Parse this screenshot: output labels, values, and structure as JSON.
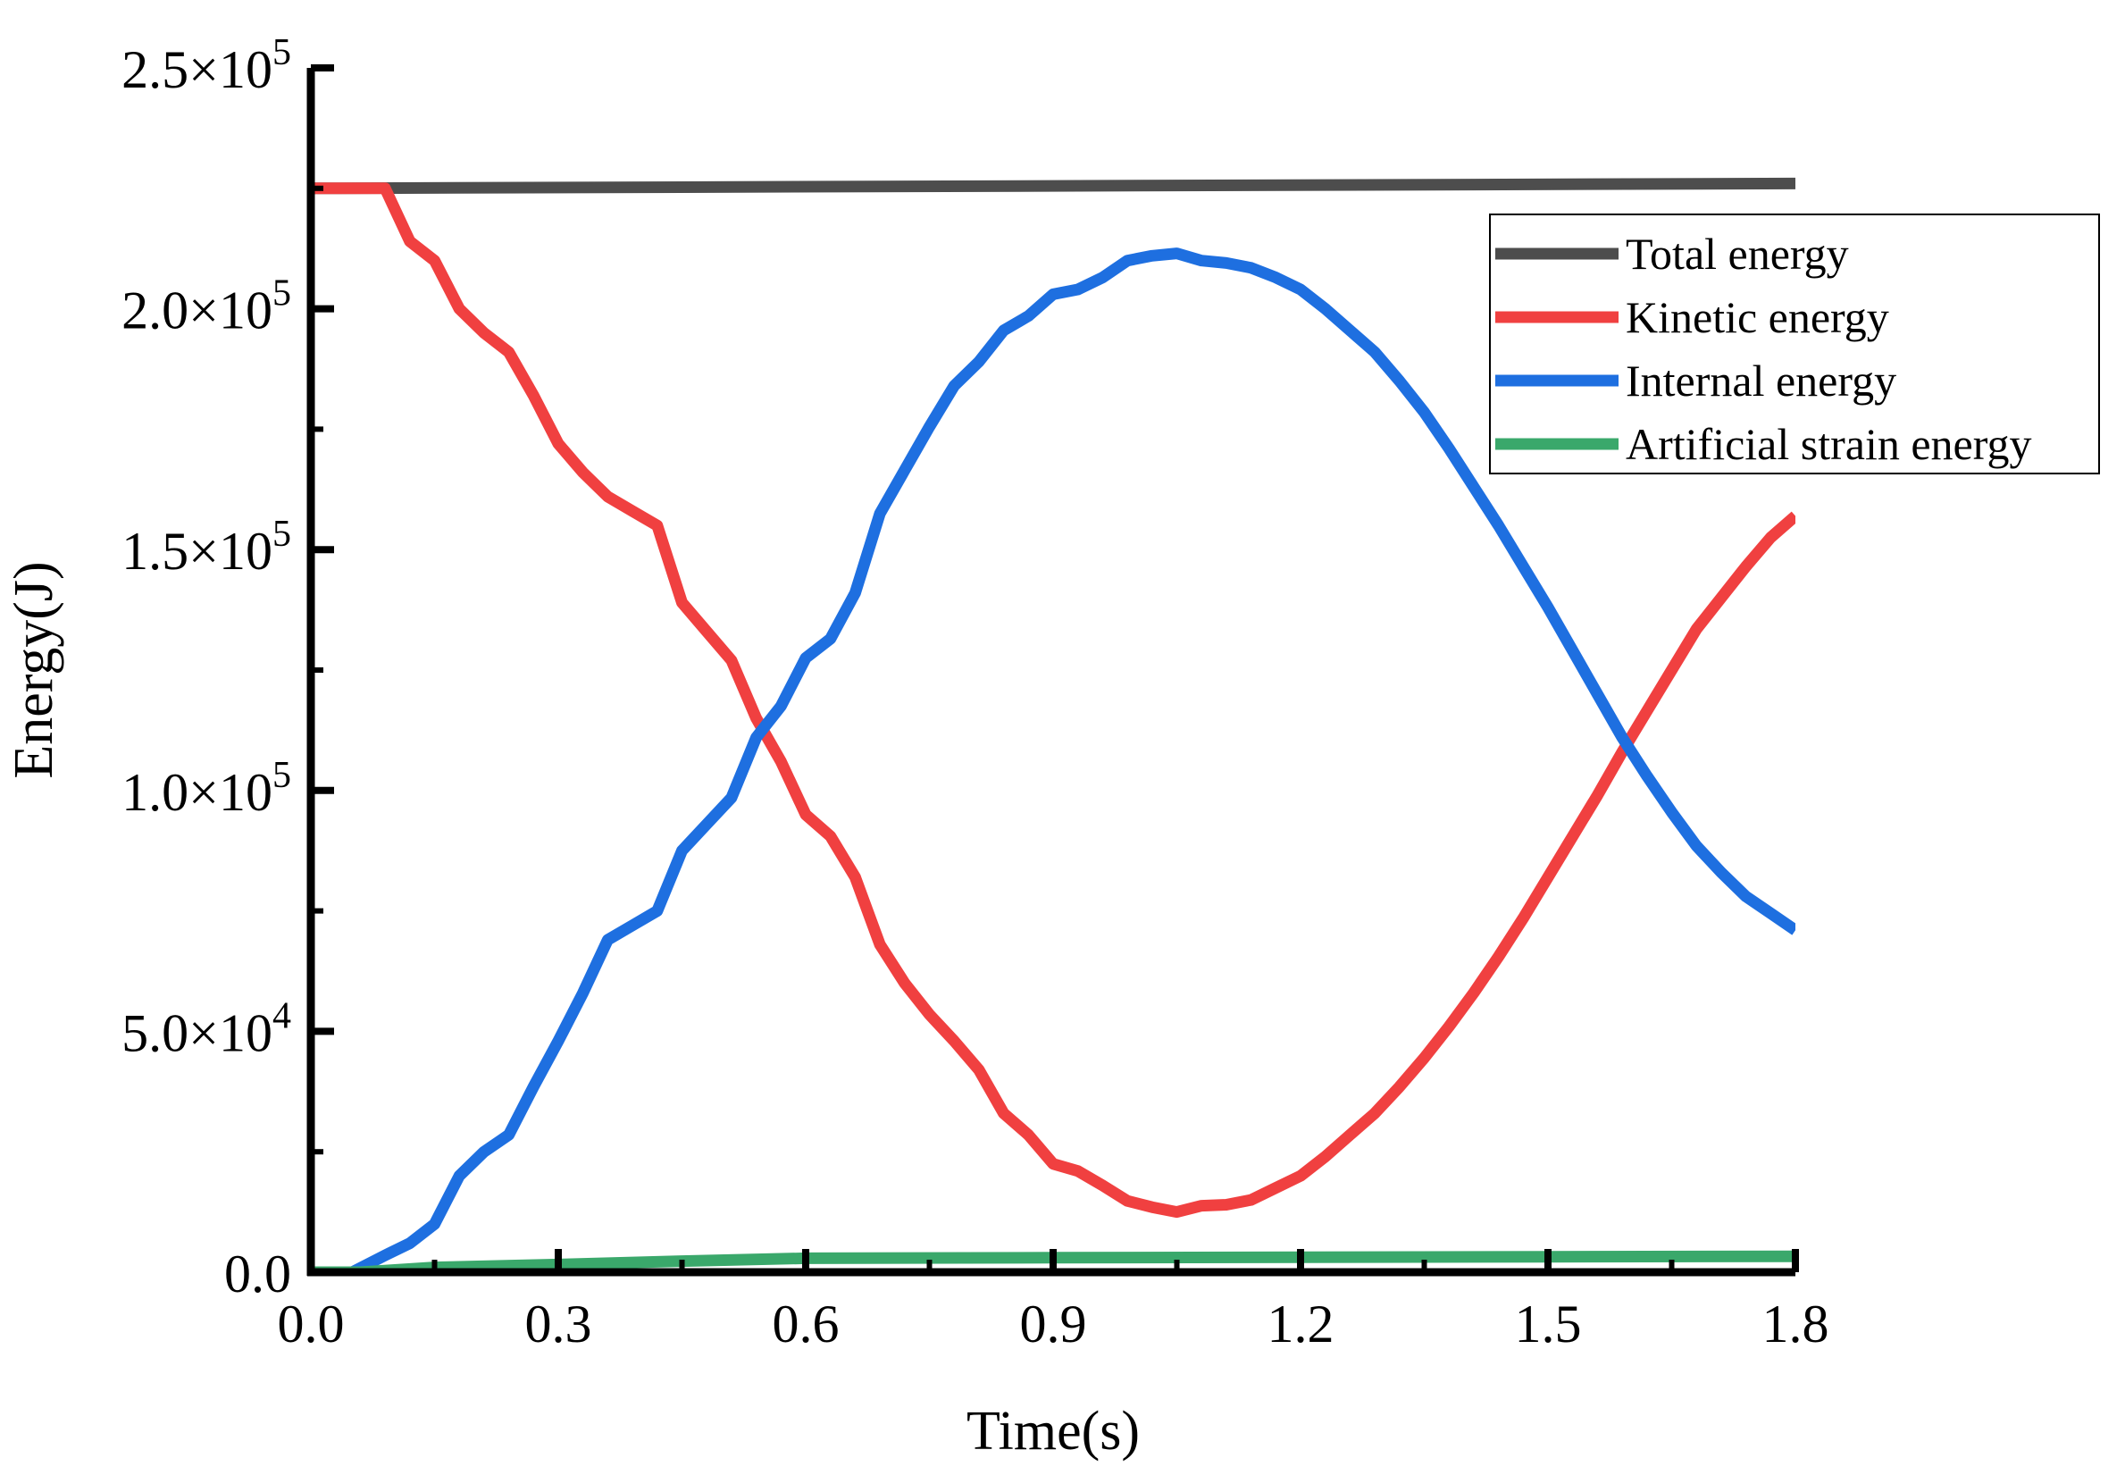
{
  "chart_data": {
    "type": "line",
    "title": "",
    "xlabel": "Time(s)",
    "ylabel": "Energy(J)",
    "xlim": [
      0,
      1.8
    ],
    "ylim": [
      0,
      250000
    ],
    "x_ticks": [
      0.0,
      0.3,
      0.6,
      0.9,
      1.2,
      1.5,
      1.8
    ],
    "x_tick_labels": [
      "0.0",
      "0.3",
      "0.6",
      "0.9",
      "1.2",
      "1.5",
      "1.8"
    ],
    "y_ticks": [
      0,
      50000,
      100000,
      150000,
      200000,
      250000
    ],
    "y_tick_labels": [
      {
        "mantissa": "0.0",
        "exp": ""
      },
      {
        "mantissa": "5.0×10",
        "exp": "4"
      },
      {
        "mantissa": "1.0×10",
        "exp": "5"
      },
      {
        "mantissa": "1.5×10",
        "exp": "5"
      },
      {
        "mantissa": "2.0×10",
        "exp": "5"
      },
      {
        "mantissa": "2.5×10",
        "exp": "5"
      }
    ],
    "grid": false,
    "legend_position": "top-right",
    "series": [
      {
        "name": "Total energy",
        "color": "#4d4d4d",
        "points": [
          [
            0.0,
            225000
          ],
          [
            1.8,
            226000
          ]
        ]
      },
      {
        "name": "Kinetic energy",
        "color": "#f04040",
        "points": [
          [
            0.0,
            225000
          ],
          [
            0.06,
            225000
          ],
          [
            0.09,
            225000
          ],
          [
            0.12,
            214000
          ],
          [
            0.15,
            210000
          ],
          [
            0.18,
            200000
          ],
          [
            0.21,
            195000
          ],
          [
            0.24,
            191000
          ],
          [
            0.27,
            182000
          ],
          [
            0.3,
            172000
          ],
          [
            0.33,
            166000
          ],
          [
            0.36,
            161000
          ],
          [
            0.39,
            158000
          ],
          [
            0.42,
            155000
          ],
          [
            0.45,
            139000
          ],
          [
            0.48,
            133000
          ],
          [
            0.51,
            127000
          ],
          [
            0.54,
            115000
          ],
          [
            0.57,
            106000
          ],
          [
            0.6,
            95000
          ],
          [
            0.63,
            90500
          ],
          [
            0.66,
            82000
          ],
          [
            0.69,
            68000
          ],
          [
            0.72,
            60000
          ],
          [
            0.75,
            53500
          ],
          [
            0.78,
            48000
          ],
          [
            0.81,
            42000
          ],
          [
            0.84,
            33000
          ],
          [
            0.87,
            28500
          ],
          [
            0.9,
            22500
          ],
          [
            0.93,
            21000
          ],
          [
            0.96,
            18000
          ],
          [
            0.99,
            14800
          ],
          [
            1.02,
            13500
          ],
          [
            1.05,
            12500
          ],
          [
            1.08,
            13800
          ],
          [
            1.11,
            14000
          ],
          [
            1.14,
            15000
          ],
          [
            1.17,
            17500
          ],
          [
            1.2,
            20000
          ],
          [
            1.23,
            24000
          ],
          [
            1.26,
            28500
          ],
          [
            1.29,
            33000
          ],
          [
            1.32,
            38500
          ],
          [
            1.35,
            44500
          ],
          [
            1.38,
            51000
          ],
          [
            1.41,
            58000
          ],
          [
            1.44,
            65500
          ],
          [
            1.47,
            73500
          ],
          [
            1.5,
            82000
          ],
          [
            1.53,
            90500
          ],
          [
            1.56,
            99000
          ],
          [
            1.59,
            108000
          ],
          [
            1.62,
            116500
          ],
          [
            1.65,
            125000
          ],
          [
            1.68,
            133500
          ],
          [
            1.71,
            140000
          ],
          [
            1.74,
            146500
          ],
          [
            1.77,
            152500
          ],
          [
            1.8,
            157000
          ]
        ]
      },
      {
        "name": "Internal energy",
        "color": "#1e6fe0",
        "points": [
          [
            0.0,
            0
          ],
          [
            0.05,
            0
          ],
          [
            0.09,
            3500
          ],
          [
            0.12,
            6000
          ],
          [
            0.15,
            10000
          ],
          [
            0.18,
            20000
          ],
          [
            0.21,
            25000
          ],
          [
            0.24,
            28500
          ],
          [
            0.27,
            38500
          ],
          [
            0.3,
            48000
          ],
          [
            0.33,
            58000
          ],
          [
            0.36,
            69000
          ],
          [
            0.39,
            72000
          ],
          [
            0.42,
            75000
          ],
          [
            0.45,
            87500
          ],
          [
            0.48,
            93000
          ],
          [
            0.51,
            98500
          ],
          [
            0.54,
            111000
          ],
          [
            0.57,
            117500
          ],
          [
            0.6,
            127500
          ],
          [
            0.63,
            131500
          ],
          [
            0.66,
            141000
          ],
          [
            0.69,
            157500
          ],
          [
            0.72,
            166500
          ],
          [
            0.75,
            175500
          ],
          [
            0.78,
            184000
          ],
          [
            0.81,
            189000
          ],
          [
            0.84,
            195500
          ],
          [
            0.87,
            198500
          ],
          [
            0.9,
            203000
          ],
          [
            0.93,
            204000
          ],
          [
            0.96,
            206500
          ],
          [
            0.99,
            210000
          ],
          [
            1.02,
            211000
          ],
          [
            1.05,
            211500
          ],
          [
            1.08,
            210000
          ],
          [
            1.11,
            209500
          ],
          [
            1.14,
            208500
          ],
          [
            1.17,
            206500
          ],
          [
            1.2,
            204000
          ],
          [
            1.23,
            200000
          ],
          [
            1.26,
            195500
          ],
          [
            1.29,
            191000
          ],
          [
            1.32,
            185000
          ],
          [
            1.35,
            178500
          ],
          [
            1.38,
            171000
          ],
          [
            1.41,
            163000
          ],
          [
            1.44,
            155000
          ],
          [
            1.47,
            146500
          ],
          [
            1.5,
            138000
          ],
          [
            1.53,
            129000
          ],
          [
            1.56,
            120000
          ],
          [
            1.59,
            111000
          ],
          [
            1.62,
            103000
          ],
          [
            1.65,
            95500
          ],
          [
            1.68,
            88500
          ],
          [
            1.71,
            83000
          ],
          [
            1.74,
            78000
          ],
          [
            1.77,
            74500
          ],
          [
            1.8,
            71000
          ]
        ]
      },
      {
        "name": "Artificial strain energy",
        "color": "#3aa86b",
        "points": [
          [
            0.0,
            0
          ],
          [
            0.06,
            0
          ],
          [
            0.15,
            1000
          ],
          [
            0.3,
            1600
          ],
          [
            0.45,
            2300
          ],
          [
            0.6,
            2900
          ],
          [
            0.9,
            3000
          ],
          [
            1.2,
            3100
          ],
          [
            1.5,
            3200
          ],
          [
            1.8,
            3300
          ]
        ]
      }
    ]
  }
}
